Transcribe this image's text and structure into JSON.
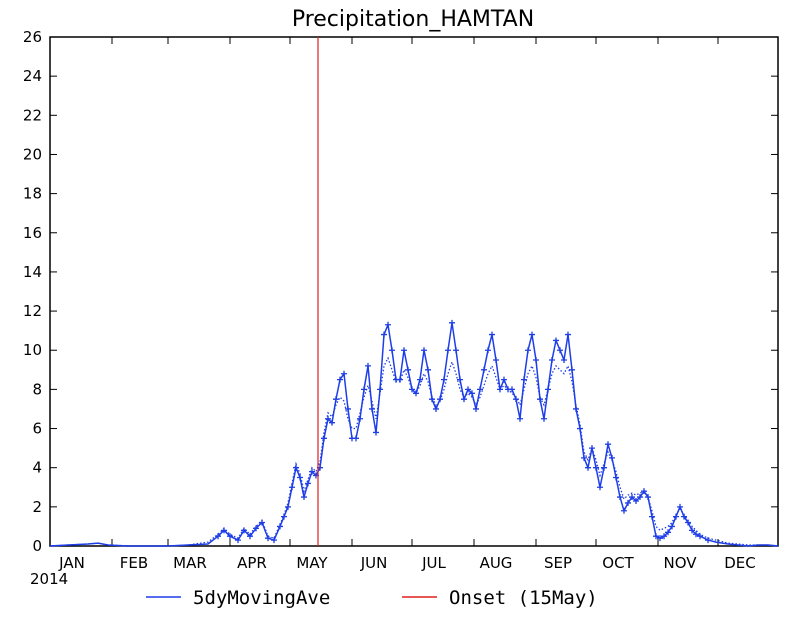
{
  "chart_data": {
    "type": "line",
    "title": "Precipitation_HAMTAN",
    "ylim": [
      0,
      26
    ],
    "y_ticks": [
      "0",
      "2",
      "4",
      "6",
      "8",
      "10",
      "12",
      "14",
      "16",
      "18",
      "20",
      "22",
      "24",
      "26"
    ],
    "x_ticks": [
      "JAN",
      "FEB",
      "MAR",
      "APR",
      "MAY",
      "JUN",
      "JUL",
      "AUG",
      "SEP",
      "OCT",
      "NOV",
      "DEC"
    ],
    "x_year_label": "2014",
    "onset": {
      "name": "Onset (15May)",
      "day": 135,
      "color": "#e0201a"
    },
    "series": [
      {
        "name": "5dyMovingAve",
        "color": "#1e3ee8",
        "points": [
          [
            1,
            0.0
          ],
          [
            10,
            0.05
          ],
          [
            20,
            0.1
          ],
          [
            25,
            0.15
          ],
          [
            30,
            0.05
          ],
          [
            40,
            0.0
          ],
          [
            50,
            0.0
          ],
          [
            60,
            0.0
          ],
          [
            70,
            0.05
          ],
          [
            80,
            0.1
          ],
          [
            85,
            0.5
          ],
          [
            88,
            0.8
          ],
          [
            91,
            0.5
          ],
          [
            95,
            0.3
          ],
          [
            98,
            0.8
          ],
          [
            101,
            0.5
          ],
          [
            104,
            0.9
          ],
          [
            107,
            1.2
          ],
          [
            110,
            0.4
          ],
          [
            113,
            0.3
          ],
          [
            116,
            1.0
          ],
          [
            118,
            1.5
          ],
          [
            120,
            2.0
          ],
          [
            122,
            3.0
          ],
          [
            124,
            4.0
          ],
          [
            126,
            3.5
          ],
          [
            128,
            2.5
          ],
          [
            130,
            3.2
          ],
          [
            132,
            3.8
          ],
          [
            134,
            3.6
          ],
          [
            136,
            4.0
          ],
          [
            138,
            5.5
          ],
          [
            140,
            6.5
          ],
          [
            142,
            6.3
          ],
          [
            144,
            7.5
          ],
          [
            146,
            8.5
          ],
          [
            148,
            8.8
          ],
          [
            150,
            7.0
          ],
          [
            152,
            5.5
          ],
          [
            154,
            5.5
          ],
          [
            156,
            6.5
          ],
          [
            158,
            8.0
          ],
          [
            160,
            9.2
          ],
          [
            162,
            7.0
          ],
          [
            164,
            5.8
          ],
          [
            166,
            8.0
          ],
          [
            168,
            10.8
          ],
          [
            170,
            11.3
          ],
          [
            172,
            10.0
          ],
          [
            174,
            8.5
          ],
          [
            176,
            8.5
          ],
          [
            178,
            10.0
          ],
          [
            180,
            9.0
          ],
          [
            182,
            8.0
          ],
          [
            184,
            7.8
          ],
          [
            186,
            8.5
          ],
          [
            188,
            10.0
          ],
          [
            190,
            9.0
          ],
          [
            192,
            7.5
          ],
          [
            194,
            7.0
          ],
          [
            196,
            7.5
          ],
          [
            198,
            8.5
          ],
          [
            200,
            10.0
          ],
          [
            202,
            11.4
          ],
          [
            204,
            10.0
          ],
          [
            206,
            8.5
          ],
          [
            208,
            7.5
          ],
          [
            210,
            8.0
          ],
          [
            212,
            7.8
          ],
          [
            214,
            7.0
          ],
          [
            216,
            8.0
          ],
          [
            218,
            9.0
          ],
          [
            220,
            10.0
          ],
          [
            222,
            10.8
          ],
          [
            224,
            9.5
          ],
          [
            226,
            8.0
          ],
          [
            228,
            8.5
          ],
          [
            230,
            8.0
          ],
          [
            232,
            8.0
          ],
          [
            234,
            7.5
          ],
          [
            236,
            6.5
          ],
          [
            238,
            8.5
          ],
          [
            240,
            10.0
          ],
          [
            242,
            10.8
          ],
          [
            244,
            9.5
          ],
          [
            246,
            7.5
          ],
          [
            248,
            6.5
          ],
          [
            250,
            8.0
          ],
          [
            252,
            9.5
          ],
          [
            254,
            10.5
          ],
          [
            256,
            10.0
          ],
          [
            258,
            9.5
          ],
          [
            260,
            10.8
          ],
          [
            262,
            9.0
          ],
          [
            264,
            7.0
          ],
          [
            266,
            6.0
          ],
          [
            268,
            4.5
          ],
          [
            270,
            4.0
          ],
          [
            272,
            5.0
          ],
          [
            274,
            4.0
          ],
          [
            276,
            3.0
          ],
          [
            278,
            4.0
          ],
          [
            280,
            5.2
          ],
          [
            282,
            4.5
          ],
          [
            284,
            3.5
          ],
          [
            286,
            2.5
          ],
          [
            288,
            1.8
          ],
          [
            290,
            2.2
          ],
          [
            292,
            2.5
          ],
          [
            294,
            2.3
          ],
          [
            296,
            2.5
          ],
          [
            298,
            2.8
          ],
          [
            300,
            2.5
          ],
          [
            302,
            1.5
          ],
          [
            304,
            0.5
          ],
          [
            306,
            0.4
          ],
          [
            308,
            0.5
          ],
          [
            310,
            0.7
          ],
          [
            312,
            1.0
          ],
          [
            314,
            1.5
          ],
          [
            316,
            2.0
          ],
          [
            318,
            1.5
          ],
          [
            320,
            1.2
          ],
          [
            322,
            0.8
          ],
          [
            324,
            0.6
          ],
          [
            326,
            0.5
          ],
          [
            330,
            0.3
          ],
          [
            334,
            0.2
          ],
          [
            340,
            0.1
          ],
          [
            345,
            0.05
          ],
          [
            350,
            0.0
          ],
          [
            355,
            0.05
          ],
          [
            360,
            0.05
          ],
          [
            365,
            0.0
          ]
        ]
      },
      {
        "name": "",
        "color": "#1e3ee8",
        "dotted": true,
        "points": [
          [
            1,
            0.0
          ],
          [
            10,
            0.05
          ],
          [
            20,
            0.1
          ],
          [
            25,
            0.15
          ],
          [
            30,
            0.05
          ],
          [
            40,
            0.0
          ],
          [
            60,
            0.0
          ],
          [
            70,
            0.05
          ],
          [
            80,
            0.2
          ],
          [
            85,
            0.6
          ],
          [
            88,
            0.9
          ],
          [
            91,
            0.6
          ],
          [
            95,
            0.4
          ],
          [
            98,
            0.9
          ],
          [
            101,
            0.6
          ],
          [
            104,
            1.0
          ],
          [
            107,
            1.3
          ],
          [
            110,
            0.5
          ],
          [
            113,
            0.4
          ],
          [
            116,
            1.1
          ],
          [
            118,
            1.6
          ],
          [
            120,
            2.2
          ],
          [
            122,
            3.2
          ],
          [
            124,
            4.2
          ],
          [
            126,
            3.7
          ],
          [
            128,
            2.8
          ],
          [
            130,
            3.4
          ],
          [
            132,
            4.0
          ],
          [
            134,
            3.8
          ],
          [
            136,
            4.3
          ],
          [
            138,
            5.8
          ],
          [
            140,
            6.8
          ],
          [
            142,
            6.6
          ],
          [
            144,
            7.2
          ],
          [
            146,
            7.6
          ],
          [
            148,
            7.4
          ],
          [
            150,
            6.5
          ],
          [
            152,
            6.0
          ],
          [
            154,
            6.0
          ],
          [
            156,
            6.8
          ],
          [
            158,
            7.6
          ],
          [
            160,
            8.2
          ],
          [
            162,
            7.4
          ],
          [
            164,
            6.5
          ],
          [
            166,
            7.8
          ],
          [
            168,
            9.2
          ],
          [
            170,
            9.6
          ],
          [
            172,
            9.0
          ],
          [
            174,
            8.4
          ],
          [
            176,
            8.4
          ],
          [
            178,
            9.0
          ],
          [
            180,
            8.6
          ],
          [
            182,
            8.0
          ],
          [
            184,
            7.8
          ],
          [
            186,
            8.2
          ],
          [
            188,
            8.8
          ],
          [
            190,
            8.4
          ],
          [
            192,
            7.6
          ],
          [
            194,
            7.2
          ],
          [
            196,
            7.4
          ],
          [
            198,
            8.0
          ],
          [
            200,
            8.8
          ],
          [
            202,
            9.4
          ],
          [
            204,
            8.8
          ],
          [
            206,
            8.0
          ],
          [
            208,
            7.6
          ],
          [
            210,
            7.8
          ],
          [
            212,
            7.6
          ],
          [
            214,
            7.2
          ],
          [
            216,
            7.6
          ],
          [
            218,
            8.2
          ],
          [
            220,
            8.8
          ],
          [
            222,
            9.2
          ],
          [
            224,
            8.6
          ],
          [
            226,
            8.0
          ],
          [
            228,
            8.2
          ],
          [
            230,
            8.0
          ],
          [
            232,
            7.8
          ],
          [
            234,
            7.6
          ],
          [
            236,
            7.2
          ],
          [
            238,
            8.0
          ],
          [
            240,
            8.8
          ],
          [
            242,
            9.2
          ],
          [
            244,
            8.6
          ],
          [
            246,
            7.6
          ],
          [
            248,
            7.2
          ],
          [
            250,
            8.0
          ],
          [
            252,
            8.8
          ],
          [
            254,
            9.2
          ],
          [
            256,
            9.0
          ],
          [
            258,
            8.8
          ],
          [
            260,
            9.2
          ],
          [
            262,
            8.4
          ],
          [
            264,
            7.2
          ],
          [
            266,
            6.2
          ],
          [
            268,
            4.8
          ],
          [
            270,
            4.4
          ],
          [
            272,
            5.0
          ],
          [
            274,
            4.4
          ],
          [
            276,
            3.6
          ],
          [
            278,
            4.2
          ],
          [
            280,
            4.8
          ],
          [
            282,
            4.4
          ],
          [
            284,
            3.8
          ],
          [
            286,
            3.0
          ],
          [
            288,
            2.4
          ],
          [
            290,
            2.6
          ],
          [
            292,
            2.7
          ],
          [
            294,
            2.6
          ],
          [
            296,
            2.7
          ],
          [
            298,
            2.8
          ],
          [
            300,
            2.5
          ],
          [
            302,
            1.8
          ],
          [
            304,
            1.0
          ],
          [
            306,
            0.8
          ],
          [
            308,
            0.9
          ],
          [
            310,
            1.0
          ],
          [
            312,
            1.2
          ],
          [
            314,
            1.6
          ],
          [
            316,
            1.9
          ],
          [
            318,
            1.6
          ],
          [
            320,
            1.3
          ],
          [
            322,
            1.0
          ],
          [
            324,
            0.8
          ],
          [
            326,
            0.6
          ],
          [
            330,
            0.4
          ],
          [
            334,
            0.3
          ],
          [
            340,
            0.15
          ],
          [
            345,
            0.1
          ],
          [
            350,
            0.05
          ],
          [
            355,
            0.05
          ],
          [
            360,
            0.05
          ],
          [
            365,
            0.0
          ]
        ]
      }
    ],
    "legend": [
      {
        "label": "5dyMovingAve",
        "color": "#1e3ee8"
      },
      {
        "label": "Onset (15May)",
        "color": "#e0201a"
      }
    ],
    "legend_position": "bottom"
  }
}
